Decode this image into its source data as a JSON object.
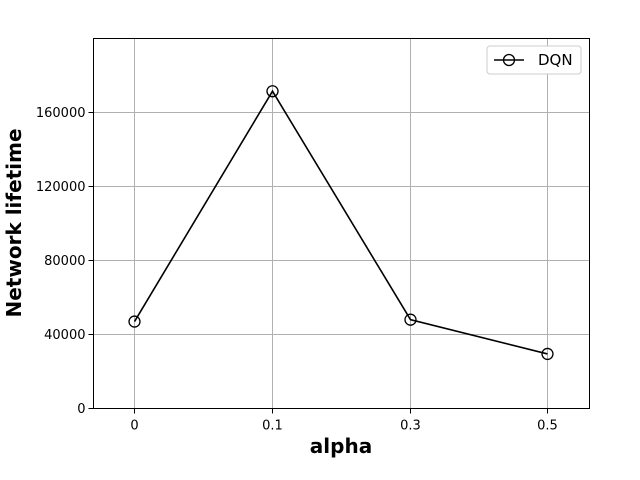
{
  "chart_data": {
    "type": "line",
    "categories": [
      "0",
      "0.1",
      "0.3",
      "0.5"
    ],
    "series": [
      {
        "name": "DQN",
        "values": [
          47000,
          171500,
          48000,
          29500
        ],
        "color": "#000000",
        "marker": "circle-open"
      }
    ],
    "xlabel": "alpha",
    "ylabel": "Network lifetime",
    "ylim": [
      0,
      200000
    ],
    "yticks": [
      0,
      40000,
      80000,
      120000,
      160000
    ],
    "grid": true,
    "legend": {
      "position": "top-right",
      "entries": [
        "DQN"
      ]
    }
  }
}
